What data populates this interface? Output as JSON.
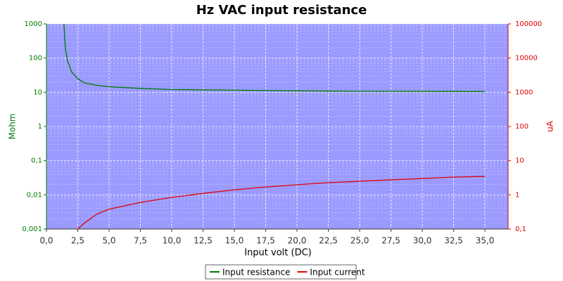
{
  "chart_data": {
    "type": "line",
    "title": "Hz VAC input resistance",
    "xlabel": "Input volt (DC)",
    "ylabel": "Mohm",
    "y2label": "uA",
    "xlim": [
      0,
      36.85
    ],
    "xticks": [
      {
        "value": 0,
        "label": "0,0"
      },
      {
        "value": 2.5,
        "label": "2,5"
      },
      {
        "value": 5,
        "label": "5,0"
      },
      {
        "value": 7.5,
        "label": "7,5"
      },
      {
        "value": 10,
        "label": "10,0"
      },
      {
        "value": 12.5,
        "label": "12,5"
      },
      {
        "value": 15,
        "label": "15,0"
      },
      {
        "value": 17.5,
        "label": "17,5"
      },
      {
        "value": 20,
        "label": "20,0"
      },
      {
        "value": 22.5,
        "label": "22,5"
      },
      {
        "value": 25,
        "label": "25,0"
      },
      {
        "value": 27.5,
        "label": "27,5"
      },
      {
        "value": 30,
        "label": "30,0"
      },
      {
        "value": 32.5,
        "label": "32,5"
      },
      {
        "value": 35,
        "label": "35,0"
      }
    ],
    "yscale": "log",
    "ylim": [
      0.001,
      1000
    ],
    "yticks": [
      {
        "value": 0.001,
        "label": "0,001"
      },
      {
        "value": 0.01,
        "label": "0,01"
      },
      {
        "value": 0.1,
        "label": "0,1"
      },
      1,
      10,
      100,
      1000
    ],
    "y2scale": "log",
    "y2lim": [
      0.1,
      100000
    ],
    "y2ticks": [
      {
        "value": 0.1,
        "label": "0,1"
      },
      1,
      10,
      100,
      1000,
      10000,
      100000
    ],
    "grid": true,
    "background": "#9a9aff",
    "legend": "bottom",
    "series": [
      {
        "name": "Input resistance",
        "color": "#007800",
        "x": [
          1.4,
          1.5,
          1.7,
          2,
          2.5,
          3,
          4,
          5,
          7.5,
          10,
          15,
          20,
          25,
          30,
          35
        ],
        "values": [
          1000,
          200,
          80,
          40,
          25,
          19,
          16,
          14.5,
          13,
          12,
          11.5,
          11,
          10.7,
          10.6,
          10.5
        ]
      },
      {
        "name": "Input current",
        "color": "#e00000",
        "axis": "y2",
        "x": [
          2.5,
          3,
          4,
          5,
          7.5,
          10,
          12.5,
          15,
          17.5,
          20,
          22.5,
          25,
          27.5,
          30,
          32.5,
          35
        ],
        "values": [
          0.1,
          0.146,
          0.27,
          0.38,
          0.6,
          0.84,
          1.1,
          1.4,
          1.7,
          1.97,
          2.27,
          2.5,
          2.75,
          3.0,
          3.3,
          3.47
        ]
      }
    ]
  }
}
